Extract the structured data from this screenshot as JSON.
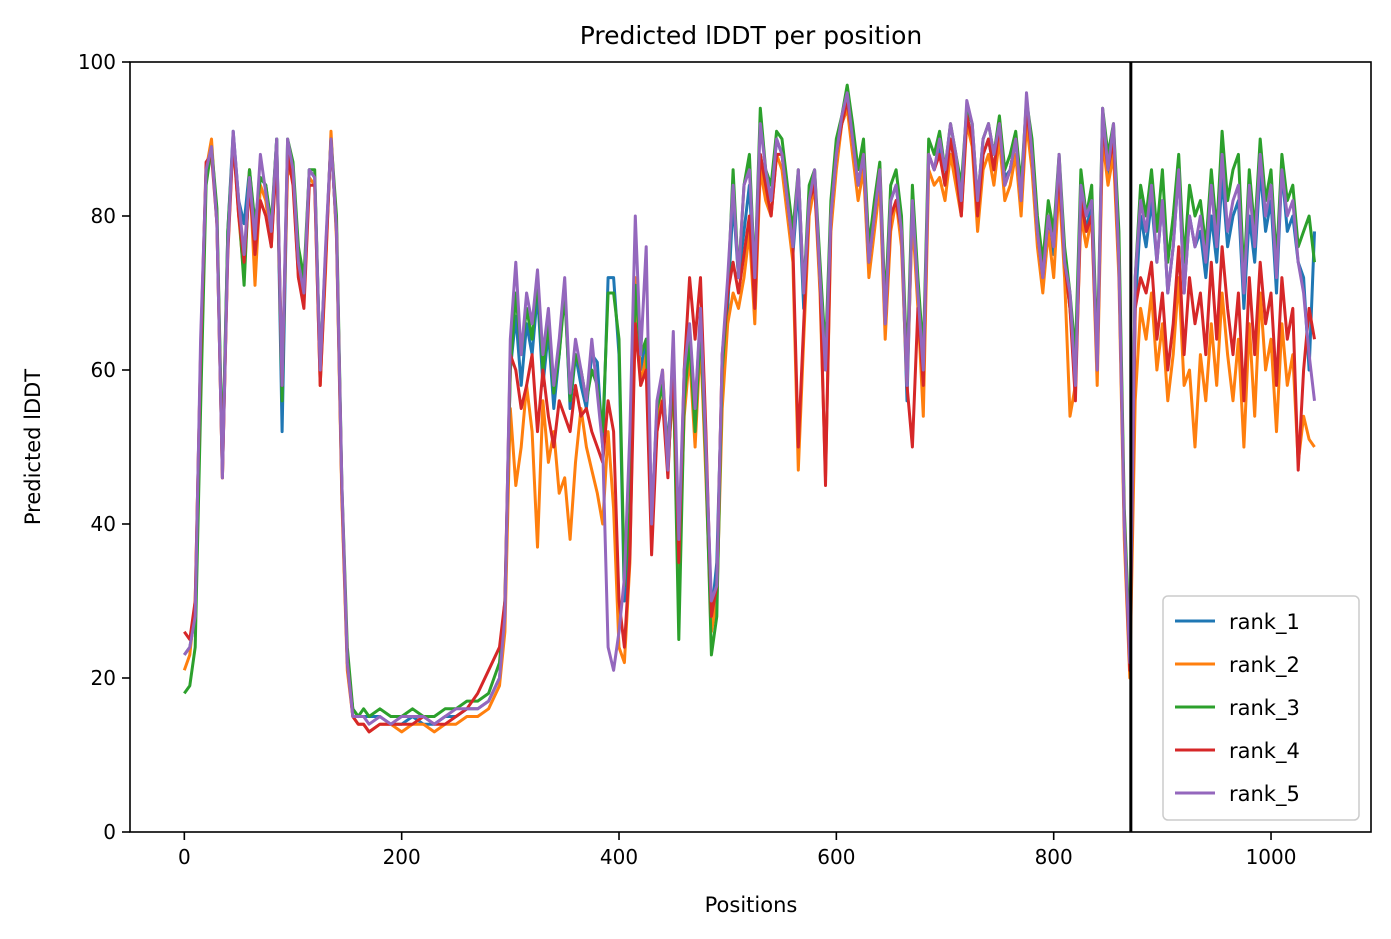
{
  "chart_data": {
    "type": "line",
    "title": "Predicted lDDT per position",
    "xlabel": "Positions",
    "ylabel": "Predicted lDDT",
    "xlim": [
      -50,
      1092
    ],
    "ylim": [
      0,
      100
    ],
    "xticks": [
      "0",
      "200",
      "400",
      "600",
      "800",
      "1000"
    ],
    "yticks": [
      "0",
      "20",
      "40",
      "60",
      "80",
      "100"
    ],
    "grid": false,
    "legend_position": "lower-right",
    "chain_break_x": 871,
    "x": [
      0,
      5,
      10,
      15,
      20,
      25,
      30,
      35,
      40,
      45,
      50,
      55,
      60,
      65,
      70,
      75,
      80,
      85,
      90,
      95,
      100,
      105,
      110,
      115,
      120,
      125,
      130,
      135,
      140,
      145,
      150,
      155,
      160,
      165,
      170,
      180,
      190,
      200,
      210,
      220,
      230,
      240,
      250,
      260,
      270,
      280,
      290,
      295,
      300,
      305,
      310,
      315,
      320,
      325,
      330,
      335,
      340,
      345,
      350,
      355,
      360,
      365,
      370,
      375,
      380,
      385,
      390,
      395,
      400,
      405,
      410,
      415,
      420,
      425,
      430,
      435,
      440,
      445,
      450,
      455,
      460,
      465,
      470,
      475,
      480,
      485,
      490,
      495,
      500,
      505,
      510,
      515,
      520,
      525,
      530,
      535,
      540,
      545,
      550,
      555,
      560,
      565,
      570,
      575,
      580,
      585,
      590,
      595,
      600,
      605,
      610,
      615,
      620,
      625,
      630,
      635,
      640,
      645,
      650,
      655,
      660,
      665,
      670,
      675,
      680,
      685,
      690,
      695,
      700,
      705,
      710,
      715,
      720,
      725,
      730,
      735,
      740,
      745,
      750,
      755,
      760,
      765,
      770,
      775,
      780,
      785,
      790,
      795,
      800,
      805,
      810,
      815,
      820,
      825,
      830,
      835,
      840,
      845,
      850,
      855,
      860,
      865,
      870,
      875,
      880,
      885,
      890,
      895,
      900,
      905,
      910,
      915,
      920,
      925,
      930,
      935,
      940,
      945,
      950,
      955,
      960,
      965,
      970,
      975,
      980,
      985,
      990,
      995,
      1000,
      1005,
      1010,
      1015,
      1020,
      1025,
      1030,
      1035,
      1040
    ],
    "series": [
      {
        "name": "rank_1",
        "color": "#1f77b4",
        "values": [
          23,
          24,
          28,
          60,
          86,
          89,
          80,
          47,
          78,
          91,
          82,
          79,
          86,
          78,
          85,
          84,
          78,
          90,
          52,
          88,
          86,
          74,
          70,
          86,
          85,
          60,
          75,
          90,
          78,
          44,
          22,
          16,
          15,
          15,
          15,
          15,
          14,
          14,
          15,
          14,
          14,
          15,
          15,
          16,
          16,
          17,
          20,
          28,
          60,
          67,
          58,
          66,
          62,
          70,
          58,
          65,
          55,
          62,
          71,
          55,
          62,
          58,
          55,
          62,
          61,
          50,
          72,
          72,
          62,
          30,
          40,
          70,
          60,
          64,
          40,
          55,
          58,
          50,
          62,
          35,
          58,
          65,
          55,
          67,
          50,
          28,
          35,
          60,
          68,
          82,
          72,
          78,
          84,
          70,
          88,
          84,
          82,
          90,
          88,
          82,
          75,
          84,
          68,
          82,
          85,
          72,
          60,
          80,
          88,
          92,
          94,
          90,
          84,
          88,
          74,
          80,
          85,
          66,
          82,
          84,
          78,
          56,
          82,
          70,
          60,
          88,
          86,
          89,
          84,
          90,
          86,
          82,
          93,
          90,
          80,
          88,
          90,
          86,
          92,
          85,
          86,
          90,
          82,
          94,
          88,
          78,
          72,
          80,
          75,
          86,
          74,
          68,
          60,
          84,
          78,
          82,
          60,
          92,
          85,
          90,
          75,
          40,
          22,
          68,
          80,
          76,
          82,
          74,
          82,
          70,
          76,
          86,
          70,
          80,
          76,
          78,
          72,
          80,
          74,
          85,
          76,
          80,
          82,
          68,
          80,
          74,
          86,
          78,
          82,
          70,
          86,
          78,
          80,
          74,
          72,
          60,
          78
        ]
      },
      {
        "name": "rank_2",
        "color": "#ff7f0e",
        "values": [
          21,
          23,
          30,
          62,
          86,
          90,
          79,
          46,
          76,
          90,
          80,
          72,
          86,
          71,
          84,
          82,
          76,
          89,
          59,
          86,
          85,
          72,
          69,
          85,
          84,
          58,
          73,
          91,
          77,
          43,
          21,
          15,
          14,
          14,
          13,
          14,
          14,
          13,
          14,
          14,
          13,
          14,
          14,
          15,
          15,
          16,
          19,
          26,
          55,
          45,
          50,
          58,
          52,
          37,
          56,
          48,
          52,
          44,
          46,
          38,
          48,
          55,
          50,
          47,
          44,
          40,
          52,
          42,
          24,
          22,
          35,
          72,
          58,
          62,
          40,
          52,
          60,
          48,
          58,
          33,
          54,
          62,
          50,
          64,
          46,
          26,
          30,
          55,
          66,
          70,
          68,
          72,
          78,
          66,
          86,
          82,
          80,
          88,
          86,
          80,
          74,
          47,
          64,
          80,
          84,
          70,
          46,
          78,
          86,
          92,
          94,
          88,
          82,
          86,
          72,
          78,
          84,
          64,
          78,
          82,
          76,
          58,
          80,
          68,
          54,
          86,
          84,
          85,
          82,
          88,
          84,
          80,
          92,
          89,
          78,
          86,
          88,
          84,
          90,
          82,
          84,
          88,
          80,
          92,
          86,
          76,
          70,
          78,
          72,
          84,
          72,
          54,
          58,
          80,
          76,
          80,
          58,
          90,
          84,
          88,
          72,
          38,
          20,
          56,
          68,
          64,
          70,
          60,
          66,
          56,
          62,
          72,
          58,
          60,
          50,
          62,
          56,
          66,
          58,
          70,
          62,
          56,
          64,
          50,
          66,
          54,
          70,
          60,
          64,
          52,
          66,
          58,
          62,
          48,
          54,
          51,
          50
        ]
      },
      {
        "name": "rank_3",
        "color": "#2ca02c",
        "values": [
          18,
          19,
          24,
          55,
          84,
          89,
          81,
          48,
          78,
          90,
          81,
          71,
          86,
          79,
          85,
          84,
          79,
          90,
          56,
          90,
          87,
          76,
          72,
          86,
          86,
          60,
          75,
          90,
          80,
          45,
          24,
          16,
          15,
          16,
          15,
          16,
          15,
          15,
          16,
          15,
          15,
          16,
          16,
          17,
          17,
          18,
          22,
          30,
          60,
          70,
          62,
          68,
          64,
          72,
          60,
          66,
          57,
          62,
          70,
          56,
          62,
          60,
          56,
          60,
          58,
          52,
          70,
          70,
          64,
          32,
          42,
          71,
          62,
          64,
          40,
          55,
          58,
          47,
          60,
          25,
          56,
          64,
          52,
          66,
          48,
          23,
          28,
          60,
          70,
          86,
          72,
          84,
          88,
          72,
          94,
          86,
          84,
          91,
          90,
          84,
          78,
          86,
          70,
          84,
          86,
          74,
          62,
          82,
          90,
          93,
          97,
          92,
          86,
          90,
          76,
          82,
          87,
          68,
          84,
          86,
          80,
          60,
          84,
          72,
          62,
          90,
          88,
          91,
          86,
          92,
          88,
          84,
          94,
          92,
          82,
          90,
          92,
          88,
          93,
          86,
          88,
          91,
          84,
          95,
          90,
          80,
          74,
          82,
          78,
          88,
          76,
          70,
          62,
          86,
          80,
          84,
          62,
          94,
          88,
          92,
          78,
          42,
          24,
          72,
          84,
          80,
          86,
          78,
          86,
          74,
          80,
          88,
          74,
          84,
          80,
          82,
          76,
          86,
          78,
          91,
          82,
          86,
          88,
          72,
          86,
          78,
          90,
          82,
          86,
          74,
          88,
          82,
          84,
          76,
          78,
          80,
          74
        ]
      },
      {
        "name": "rank_4",
        "color": "#d62728",
        "values": [
          26,
          25,
          30,
          62,
          87,
          88,
          79,
          46,
          75,
          90,
          80,
          74,
          84,
          75,
          82,
          80,
          76,
          88,
          58,
          88,
          84,
          72,
          68,
          84,
          84,
          58,
          74,
          90,
          78,
          44,
          22,
          15,
          14,
          14,
          13,
          14,
          14,
          14,
          14,
          15,
          14,
          14,
          15,
          16,
          18,
          21,
          24,
          30,
          62,
          60,
          55,
          58,
          62,
          52,
          60,
          54,
          50,
          56,
          54,
          52,
          58,
          54,
          55,
          52,
          50,
          48,
          56,
          52,
          30,
          24,
          36,
          66,
          58,
          60,
          36,
          52,
          56,
          46,
          62,
          35,
          60,
          72,
          64,
          72,
          52,
          28,
          32,
          62,
          70,
          74,
          70,
          75,
          80,
          68,
          88,
          84,
          80,
          88,
          88,
          82,
          76,
          50,
          66,
          82,
          84,
          72,
          45,
          80,
          88,
          92,
          95,
          90,
          84,
          88,
          74,
          80,
          86,
          66,
          80,
          82,
          78,
          58,
          50,
          68,
          58,
          88,
          86,
          88,
          84,
          90,
          86,
          80,
          93,
          90,
          80,
          88,
          90,
          86,
          92,
          84,
          86,
          90,
          82,
          94,
          88,
          78,
          72,
          80,
          76,
          86,
          74,
          68,
          56,
          82,
          78,
          80,
          60,
          92,
          86,
          90,
          74,
          40,
          21,
          68,
          72,
          70,
          74,
          64,
          70,
          60,
          66,
          76,
          62,
          72,
          66,
          70,
          62,
          74,
          64,
          76,
          68,
          62,
          70,
          56,
          72,
          62,
          74,
          66,
          70,
          58,
          72,
          64,
          68,
          47,
          60,
          68,
          64
        ]
      },
      {
        "name": "rank_5",
        "color": "#9467bd",
        "values": [
          23,
          24,
          28,
          64,
          86,
          89,
          79,
          46,
          76,
          91,
          82,
          75,
          85,
          77,
          88,
          83,
          78,
          90,
          58,
          90,
          86,
          74,
          70,
          86,
          85,
          60,
          76,
          90,
          78,
          45,
          22,
          15,
          15,
          15,
          14,
          15,
          14,
          15,
          15,
          15,
          14,
          15,
          16,
          16,
          16,
          17,
          20,
          28,
          64,
          74,
          62,
          70,
          66,
          73,
          62,
          68,
          58,
          64,
          72,
          57,
          64,
          60,
          56,
          64,
          57,
          50,
          24,
          21,
          26,
          33,
          52,
          80,
          62,
          76,
          40,
          56,
          60,
          47,
          65,
          38,
          60,
          66,
          55,
          68,
          50,
          30,
          32,
          62,
          72,
          84,
          72,
          84,
          86,
          72,
          92,
          86,
          82,
          90,
          88,
          82,
          76,
          86,
          70,
          82,
          86,
          72,
          60,
          80,
          88,
          93,
          96,
          90,
          84,
          88,
          74,
          80,
          86,
          66,
          82,
          84,
          78,
          58,
          82,
          70,
          60,
          88,
          86,
          90,
          86,
          92,
          88,
          82,
          95,
          92,
          82,
          90,
          92,
          88,
          92,
          84,
          86,
          90,
          82,
          96,
          88,
          78,
          72,
          80,
          76,
          88,
          74,
          70,
          58,
          84,
          80,
          82,
          60,
          94,
          86,
          92,
          74,
          40,
          22,
          72,
          82,
          78,
          84,
          74,
          82,
          70,
          76,
          86,
          70,
          80,
          76,
          80,
          74,
          84,
          76,
          88,
          78,
          82,
          84,
          70,
          84,
          76,
          88,
          80,
          84,
          72,
          86,
          80,
          82,
          74,
          70,
          62,
          56
        ]
      }
    ]
  }
}
